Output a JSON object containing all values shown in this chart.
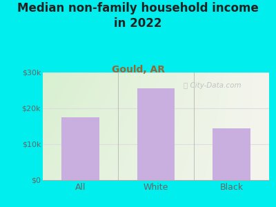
{
  "title": "Median non-family household income\nin 2022",
  "subtitle": "Gould, AR",
  "categories": [
    "All",
    "White",
    "Black"
  ],
  "values": [
    17500,
    25500,
    14500
  ],
  "bar_color": "#c9aee0",
  "title_fontsize": 12,
  "subtitle_fontsize": 10,
  "subtitle_color": "#996633",
  "title_color": "#222222",
  "tick_label_color": "#666666",
  "ylim": [
    0,
    30000
  ],
  "yticks": [
    0,
    10000,
    20000,
    30000
  ],
  "ytick_labels": [
    "$0",
    "$10k",
    "$20k",
    "$30k"
  ],
  "bg_outer": "#00eeee",
  "grid_color": "#dddddd",
  "watermark": "City-Data.com",
  "watermark_color": "#bbbbbb",
  "plot_bg_left": "#d8f0d0",
  "plot_bg_right": "#f5f5ee"
}
